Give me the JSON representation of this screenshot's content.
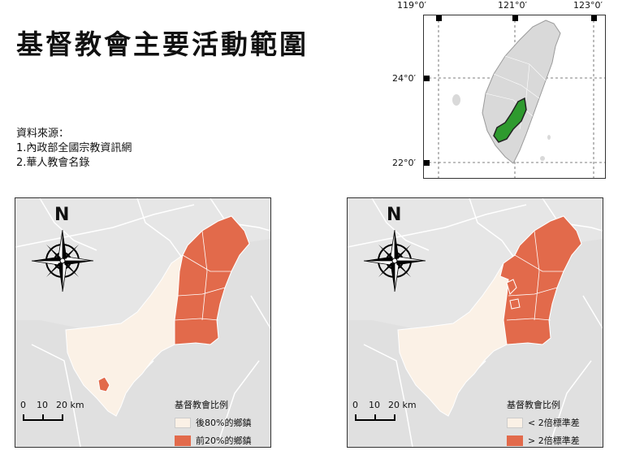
{
  "title": "基督教會主要活動範圍",
  "sources": {
    "heading": "資料來源：",
    "items": [
      "1.內政部全國宗教資訊網",
      "2.華人教會名錄"
    ]
  },
  "inset": {
    "lon_labels": [
      "119°0′",
      "121°0′",
      "123°0′"
    ],
    "lat_labels": [
      "24°0′",
      "22°0′"
    ]
  },
  "colors": {
    "background_land": "#e6e6e6",
    "boundary": "#ffffff",
    "base_region": "#fbf1e6",
    "highlight_region": "#e26a4b",
    "inset_highlight": "#2e9a2e",
    "inset_land": "#d9d9d9"
  },
  "maps": [
    {
      "compass_label": "N",
      "scale": {
        "ticks": [
          "0",
          "10",
          "20 km"
        ]
      },
      "legend": {
        "title": "基督教會比例",
        "items": [
          {
            "label": "後80%的鄉鎮",
            "color": "#fbf1e6"
          },
          {
            "label": "前20%的鄉鎮",
            "color": "#e26a4b"
          }
        ]
      }
    },
    {
      "compass_label": "N",
      "scale": {
        "ticks": [
          "0",
          "10",
          "20 km"
        ]
      },
      "legend": {
        "title": "基督教會比例",
        "items": [
          {
            "label": "< 2倍標準差",
            "color": "#fbf1e6"
          },
          {
            "label": "> 2倍標準差",
            "color": "#e26a4b"
          }
        ]
      }
    }
  ],
  "icons": [
    "north-arrow-compass-icon"
  ]
}
